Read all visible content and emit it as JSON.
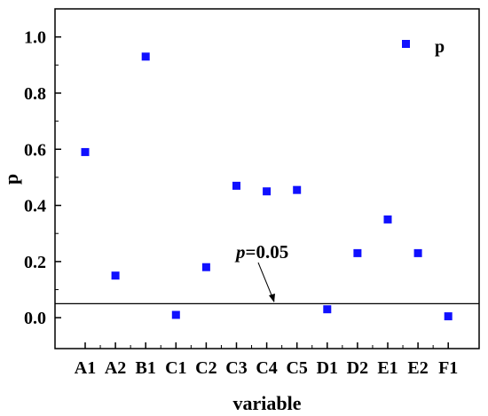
{
  "chart_data": {
    "type": "scatter",
    "categories": [
      "A1",
      "A2",
      "B1",
      "C1",
      "C2",
      "C3",
      "C4",
      "C5",
      "D1",
      "D2",
      "E1",
      "E2",
      "F1"
    ],
    "xlabel": "variable",
    "ylabel": "p",
    "ylim": [
      -0.11,
      1.1
    ],
    "yticks": [
      "0.0",
      "0.2",
      "0.4",
      "0.6",
      "0.8",
      "1.0"
    ],
    "grid": false,
    "legend": {
      "label": "p",
      "placement": "top-right",
      "marker_color": "#1010ff"
    },
    "series": [
      {
        "name": "p",
        "color": "#1010ff",
        "points": [
          {
            "x": 1.0,
            "y": 0.59
          },
          {
            "x": 2.0,
            "y": 0.15
          },
          {
            "x": 3.0,
            "y": 0.93
          },
          {
            "x": 4.0,
            "y": 0.01
          },
          {
            "x": 5.0,
            "y": 0.18
          },
          {
            "x": 6.0,
            "y": 0.47
          },
          {
            "x": 7.0,
            "y": 0.45
          },
          {
            "x": 8.0,
            "y": 0.455
          },
          {
            "x": 9.0,
            "y": 0.03
          },
          {
            "x": 10.0,
            "y": 0.23
          },
          {
            "x": 11.0,
            "y": 0.35
          },
          {
            "x": 12.0,
            "y": 0.23
          },
          {
            "x": 13.0,
            "y": 0.005
          }
        ]
      }
    ],
    "reference_line": {
      "y": 0.05,
      "color": "#000000"
    },
    "annotation": {
      "prefix": "p",
      "text": "=0.05",
      "arrow_target_x": 7.2
    }
  }
}
